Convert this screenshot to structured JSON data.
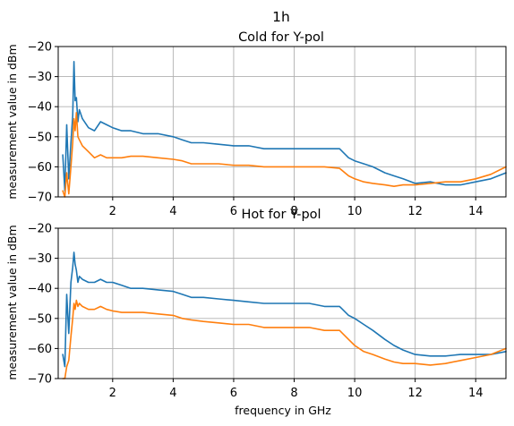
{
  "figure": {
    "suptitle": "1h"
  },
  "chart_data": [
    {
      "type": "line",
      "title": "Cold for Y-pol",
      "xlabel": "",
      "ylabel": "measurement value in dBm",
      "xlim": [
        0.2,
        15.0
      ],
      "ylim": [
        -70,
        -20
      ],
      "xticks": [
        2,
        4,
        6,
        8,
        10,
        12,
        14
      ],
      "yticks": [
        -70,
        -60,
        -50,
        -40,
        -30,
        -20
      ],
      "tick_labels_x": [
        "2",
        "4",
        "6",
        "8",
        "10",
        "12",
        "14"
      ],
      "tick_labels_y": [
        "−70",
        "−60",
        "−50",
        "−40",
        "−30",
        "−20"
      ],
      "grid": true,
      "series": [
        {
          "color": "#1f77b4",
          "x": [
            0.35,
            0.42,
            0.48,
            0.55,
            0.62,
            0.68,
            0.72,
            0.76,
            0.8,
            0.85,
            0.9,
            1.0,
            1.2,
            1.4,
            1.6,
            1.8,
            2.0,
            2.3,
            2.6,
            3.0,
            3.5,
            4.0,
            4.3,
            4.6,
            5.0,
            5.5,
            6.0,
            6.5,
            7.0,
            7.5,
            8.0,
            8.5,
            9.0,
            9.5,
            9.8,
            10.0,
            10.3,
            10.6,
            11.0,
            11.3,
            11.6,
            12.0,
            12.5,
            13.0,
            13.5,
            14.0,
            14.5,
            15.0
          ],
          "y": [
            -56,
            -68,
            -46,
            -64,
            -52,
            -43,
            -25,
            -38,
            -37,
            -45,
            -41,
            -44,
            -47,
            -48,
            -45,
            -46,
            -47,
            -48,
            -48,
            -49,
            -49,
            -50,
            -51,
            -52,
            -52,
            -52.5,
            -53,
            -53,
            -54,
            -54,
            -54,
            -54,
            -54,
            -54,
            -57,
            -58,
            -59,
            -60,
            -62,
            -63,
            -64,
            -65.5,
            -65,
            -66,
            -66,
            -65,
            -64,
            -62
          ]
        },
        {
          "color": "#ff7f0e",
          "x": [
            0.35,
            0.42,
            0.48,
            0.55,
            0.62,
            0.68,
            0.72,
            0.76,
            0.8,
            0.85,
            0.9,
            1.0,
            1.2,
            1.4,
            1.6,
            1.8,
            2.0,
            2.3,
            2.6,
            3.0,
            3.5,
            4.0,
            4.3,
            4.6,
            5.0,
            5.5,
            6.0,
            6.5,
            7.0,
            7.5,
            8.0,
            8.5,
            9.0,
            9.5,
            9.8,
            10.0,
            10.3,
            10.6,
            11.0,
            11.3,
            11.6,
            12.0,
            12.5,
            13.0,
            13.5,
            14.0,
            14.5,
            15.0
          ],
          "y": [
            -68,
            -70,
            -62,
            -69,
            -60,
            -52,
            -44,
            -48,
            -42,
            -50,
            -51,
            -53,
            -55,
            -57,
            -56,
            -57,
            -57,
            -57,
            -56.5,
            -56.5,
            -57,
            -57.5,
            -58,
            -59,
            -59,
            -59,
            -59.5,
            -59.5,
            -60,
            -60,
            -60,
            -60,
            -60,
            -60.5,
            -63,
            -64,
            -65,
            -65.5,
            -66,
            -66.5,
            -66,
            -66,
            -65.5,
            -65,
            -65,
            -64,
            -62.5,
            -60
          ]
        }
      ]
    },
    {
      "type": "line",
      "title": "Hot for Y-pol",
      "xlabel": "frequency in GHz",
      "ylabel": "measurement value in dBm",
      "xlim": [
        0.2,
        15.0
      ],
      "ylim": [
        -70,
        -20
      ],
      "xticks": [
        2,
        4,
        6,
        8,
        10,
        12,
        14
      ],
      "yticks": [
        -70,
        -60,
        -50,
        -40,
        -30,
        -20
      ],
      "tick_labels_x": [
        "2",
        "4",
        "6",
        "8",
        "10",
        "12",
        "14"
      ],
      "tick_labels_y": [
        "−70",
        "−60",
        "−50",
        "−40",
        "−30",
        "−20"
      ],
      "grid": true,
      "series": [
        {
          "color": "#1f77b4",
          "x": [
            0.35,
            0.42,
            0.48,
            0.55,
            0.62,
            0.68,
            0.72,
            0.76,
            0.8,
            0.85,
            0.9,
            1.0,
            1.2,
            1.4,
            1.6,
            1.8,
            2.0,
            2.3,
            2.6,
            3.0,
            3.5,
            4.0,
            4.3,
            4.6,
            5.0,
            5.5,
            6.0,
            6.5,
            7.0,
            7.5,
            8.0,
            8.5,
            9.0,
            9.5,
            9.8,
            10.0,
            10.3,
            10.6,
            11.0,
            11.3,
            11.6,
            12.0,
            12.5,
            13.0,
            13.5,
            14.0,
            14.5,
            15.0
          ],
          "y": [
            -62,
            -66,
            -42,
            -55,
            -38,
            -33,
            -28,
            -32,
            -34,
            -38,
            -36,
            -37,
            -38,
            -38,
            -37,
            -38,
            -38,
            -39,
            -40,
            -40,
            -40.5,
            -41,
            -42,
            -43,
            -43,
            -43.5,
            -44,
            -44.5,
            -45,
            -45,
            -45,
            -45,
            -46,
            -46,
            -49,
            -50,
            -52,
            -54,
            -57,
            -59,
            -60.5,
            -62,
            -62.5,
            -62.5,
            -62,
            -62,
            -62,
            -61
          ]
        },
        {
          "color": "#ff7f0e",
          "x": [
            0.35,
            0.42,
            0.48,
            0.55,
            0.62,
            0.68,
            0.72,
            0.76,
            0.8,
            0.85,
            0.9,
            1.0,
            1.2,
            1.4,
            1.6,
            1.8,
            2.0,
            2.3,
            2.6,
            3.0,
            3.5,
            4.0,
            4.3,
            4.6,
            5.0,
            5.5,
            6.0,
            6.5,
            7.0,
            7.5,
            8.0,
            8.5,
            9.0,
            9.5,
            9.8,
            10.0,
            10.3,
            10.6,
            11.0,
            11.3,
            11.6,
            12.0,
            12.5,
            13.0,
            13.5,
            14.0,
            14.5,
            15.0
          ],
          "y": [
            -70,
            -70,
            -66,
            -64,
            -56,
            -50,
            -45,
            -47,
            -44,
            -46,
            -45,
            -46,
            -47,
            -47,
            -46,
            -47,
            -47.5,
            -48,
            -48,
            -48,
            -48.5,
            -49,
            -50,
            -50.5,
            -51,
            -51.5,
            -52,
            -52,
            -53,
            -53,
            -53,
            -53,
            -54,
            -54,
            -57,
            -59,
            -61,
            -62,
            -63.5,
            -64.5,
            -65,
            -65,
            -65.5,
            -65,
            -64,
            -63,
            -62,
            -60
          ]
        }
      ]
    }
  ]
}
